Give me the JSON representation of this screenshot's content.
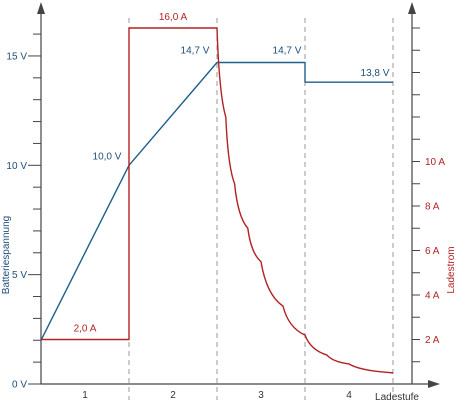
{
  "chart_data": {
    "type": "line",
    "xlabel": "Ladestufe",
    "ylabel_left": "Batteriespannung",
    "ylabel_right": "Ladestrom",
    "ylim_left": [
      0,
      16
    ],
    "ylim_right": [
      0,
      16
    ],
    "xlim": [
      0,
      4
    ],
    "categories": [
      "1",
      "2",
      "3",
      "4"
    ],
    "left_ticks": [
      {
        "value": 0,
        "label": "0 V"
      },
      {
        "value": 5,
        "label": "5 V"
      },
      {
        "value": 10,
        "label": "10 V"
      },
      {
        "value": 15,
        "label": "15 V"
      }
    ],
    "right_ticks": [
      {
        "value": 2,
        "label": "2 A"
      },
      {
        "value": 4,
        "label": "4 A"
      },
      {
        "value": 6,
        "label": "6 A"
      },
      {
        "value": 8,
        "label": "8 A"
      },
      {
        "value": 10,
        "label": "10 A"
      }
    ],
    "stage_boundaries": [
      1,
      2,
      3,
      4
    ],
    "series": [
      {
        "axis": "left",
        "color": "#1f5f8b",
        "points": [
          [
            0,
            2
          ],
          [
            1,
            10
          ],
          [
            2,
            14.7
          ],
          [
            3,
            14.7
          ],
          [
            3,
            13.8
          ],
          [
            4,
            13.8
          ]
        ]
      },
      {
        "axis": "right",
        "color": "#b22222",
        "points": [
          [
            0,
            2
          ],
          [
            1,
            2
          ],
          [
            1,
            16
          ],
          [
            2,
            16
          ],
          [
            2.1,
            12
          ],
          [
            2.2,
            9
          ],
          [
            2.35,
            7
          ],
          [
            2.5,
            5.5
          ],
          [
            2.75,
            3.5
          ],
          [
            3,
            2.2
          ],
          [
            3.25,
            1.3
          ],
          [
            3.5,
            0.9
          ],
          [
            4,
            0.5
          ]
        ]
      }
    ],
    "annotations": [
      {
        "text": "10,0 V",
        "x": 1,
        "y": 10,
        "axis": "left",
        "color": "#1f4e79"
      },
      {
        "text": "14,7 V",
        "x": 2,
        "y": 14.7,
        "axis": "left",
        "color": "#1f4e79"
      },
      {
        "text": "14,7 V",
        "x": 3,
        "y": 14.7,
        "axis": "left",
        "color": "#1f4e79"
      },
      {
        "text": "13,8 V",
        "x": 4,
        "y": 13.8,
        "axis": "left",
        "color": "#1f4e79"
      },
      {
        "text": "16,0 A",
        "x": 1.5,
        "y": 16,
        "axis": "right",
        "color": "#b22222"
      },
      {
        "text": "2,0 A",
        "x": 0.5,
        "y": 2,
        "axis": "right",
        "color": "#b22222"
      }
    ],
    "grid": false
  }
}
